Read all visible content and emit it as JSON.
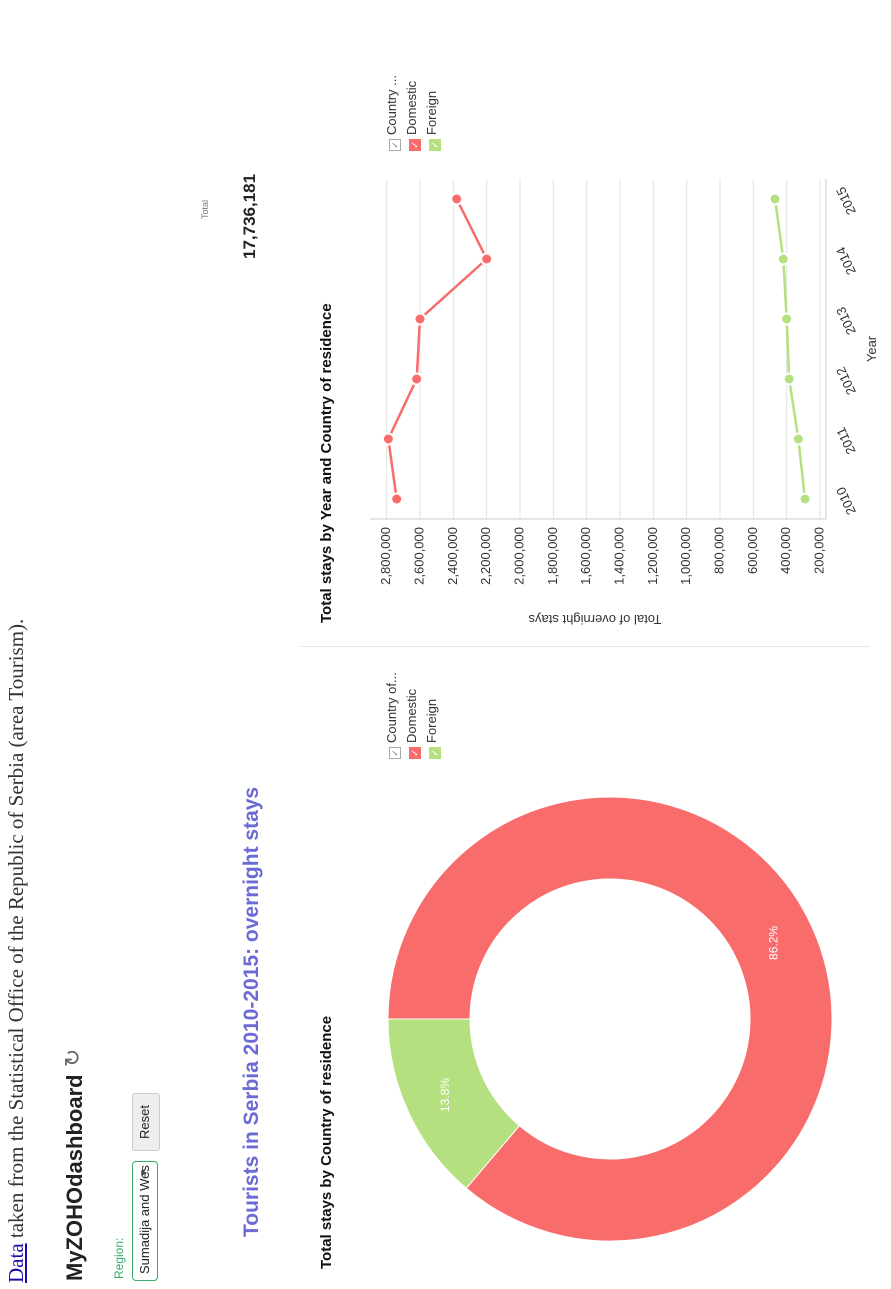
{
  "source": {
    "link_text": "Data",
    "text": " taken from the Statistical Office of the Republic of Serbia (area Tourism)."
  },
  "dashboard": {
    "title": "MyZOHOdashboard",
    "refresh_icon": "refresh-icon"
  },
  "filters": {
    "region_label": "Region:",
    "region_value": "Sumadija and Wes",
    "reset_label": "Reset"
  },
  "page_title": "Tourists in Serbia 2010-2015: overnight stays",
  "total": {
    "label": "Total",
    "value": "17,736,181"
  },
  "colors": {
    "domestic": "#f86c6b",
    "foreign": "#b5e07f",
    "title": "#6b6bd6",
    "region": "#3aaa6a"
  },
  "pie_panel": {
    "title": "Total stays by Country of residence",
    "legend": {
      "header": "Country of...",
      "items": [
        "Domestic",
        "Foreign"
      ]
    }
  },
  "line_panel": {
    "title": "Total stays by Year and Country of residence",
    "legend": {
      "header": "Country ...",
      "items": [
        "Domestic",
        "Foreign"
      ]
    }
  },
  "chart_data": [
    {
      "type": "pie",
      "title": "Total stays by Country of residence",
      "categories": [
        "Domestic",
        "Foreign"
      ],
      "values": [
        86.2,
        13.8
      ],
      "labels": [
        "86.2%",
        "13.8%"
      ],
      "legend_title": "Country of...",
      "legend_position": "right",
      "donut": true
    },
    {
      "type": "line",
      "title": "Total stays by Year and Country of residence",
      "x": [
        "2010",
        "2011",
        "2012",
        "2013",
        "2014",
        "2015"
      ],
      "xlabel": "Year",
      "ylabel": "Total of overnight stays",
      "ylim": [
        200000,
        2900000
      ],
      "yticks": [
        "200,000",
        "400,000",
        "600,000",
        "800,000",
        "1,000,000",
        "1,200,000",
        "1,400,000",
        "1,600,000",
        "1,800,000",
        "2,000,000",
        "2,200,000",
        "2,400,000",
        "2,600,000",
        "2,800,000"
      ],
      "grid": true,
      "legend_title": "Country ...",
      "legend_position": "right",
      "series": [
        {
          "name": "Domestic",
          "values": [
            2740000,
            2790000,
            2620000,
            2600000,
            2200000,
            2380000
          ]
        },
        {
          "name": "Foreign",
          "values": [
            290000,
            330000,
            385000,
            400000,
            420000,
            470000
          ]
        }
      ]
    }
  ]
}
